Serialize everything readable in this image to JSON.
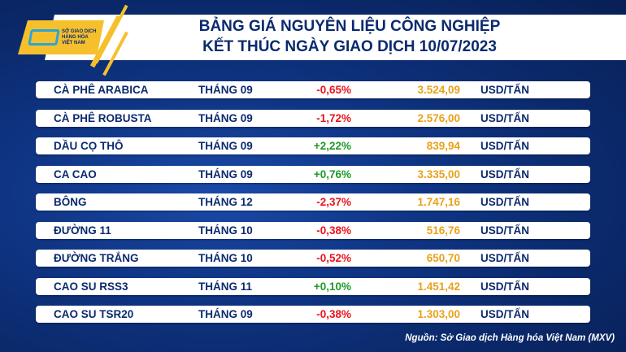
{
  "header": {
    "title_line1": "BẢNG GIÁ NGUYÊN LIỆU CÔNG NGHIỆP",
    "title_line2": "KẾT THÚC NGÀY GIAO DỊCH 10/07/2023"
  },
  "logo": {
    "text": "SỞ GIAO DỊCH HÀNG HÓA VIỆT NAM"
  },
  "colors": {
    "negative": "#e8141c",
    "positive": "#1e9a2a",
    "price": "#e8a21a",
    "navy": "#0b2a6e",
    "accent": "#f6c02c"
  },
  "rows": [
    {
      "name": "CÀ PHÊ ARABICA",
      "month": "THÁNG 09",
      "change": "-0,65%",
      "price": "3.524,09",
      "unit": "USD/TẤN"
    },
    {
      "name": "CÀ PHÊ ROBUSTA",
      "month": "THÁNG 09",
      "change": "-1,72%",
      "price": "2.576,00",
      "unit": "USD/TẤN"
    },
    {
      "name": "DẦU CỌ THÔ",
      "month": "THÁNG 09",
      "change": "+2,22%",
      "price": "839,94",
      "unit": "USD/TẤN"
    },
    {
      "name": "CA CAO",
      "month": "THÁNG 09",
      "change": "+0,76%",
      "price": "3.335,00",
      "unit": "USD/TẤN"
    },
    {
      "name": "BÔNG",
      "month": "THÁNG 12",
      "change": "-2,37%",
      "price": "1.747,16",
      "unit": "USD/TẤN"
    },
    {
      "name": "ĐƯỜNG 11",
      "month": "THÁNG 10",
      "change": "-0,38%",
      "price": "516,76",
      "unit": "USD/TẤN"
    },
    {
      "name": "ĐƯỜNG TRẮNG",
      "month": "THÁNG 10",
      "change": "-0,52%",
      "price": "650,70",
      "unit": "USD/TẤN"
    },
    {
      "name": "CAO SU RSS3",
      "month": "THÁNG 11",
      "change": "+0,10%",
      "price": "1.451,42",
      "unit": "USD/TẤN"
    },
    {
      "name": "CAO SU TSR20",
      "month": "THÁNG 09",
      "change": "-0,38%",
      "price": "1.303,00",
      "unit": "USD/TẤN"
    }
  ],
  "source": "Nguồn: Sở Giao dịch Hàng hóa Việt Nam (MXV)"
}
